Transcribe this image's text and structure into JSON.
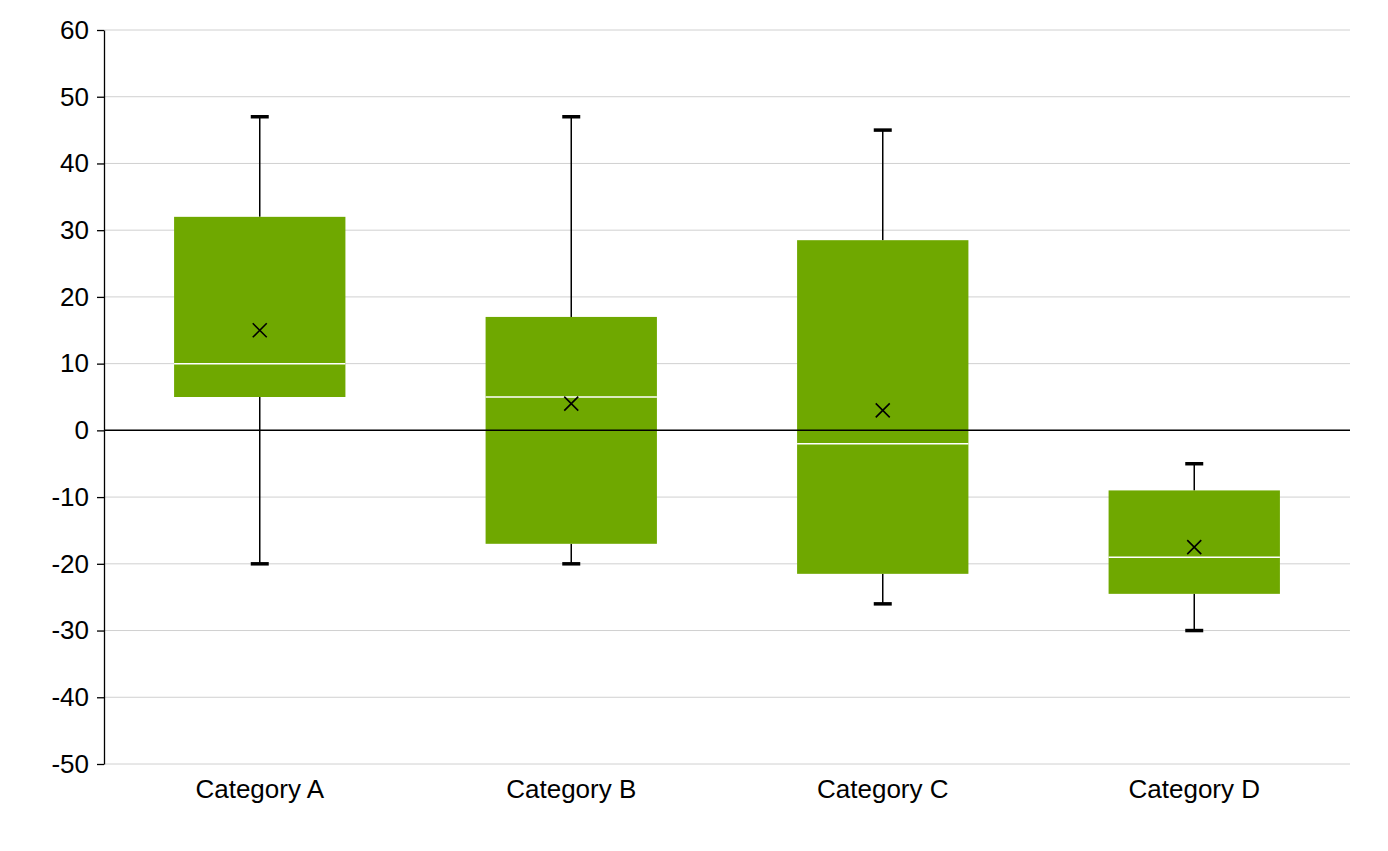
{
  "chart_data": {
    "type": "box",
    "categories": [
      "Category A",
      "Category B",
      "Category C",
      "Category D"
    ],
    "min": [
      -20,
      -20,
      -26,
      -30
    ],
    "q1": [
      5,
      -17,
      -21.5,
      -24.5
    ],
    "median": [
      10,
      5,
      -2,
      -19
    ],
    "q3": [
      32,
      17,
      28.5,
      -9
    ],
    "max": [
      47,
      47,
      45,
      -5
    ],
    "mean": [
      15,
      4,
      3,
      -17.5
    ],
    "color": "#6fa800",
    "marker": "x",
    "ylim": [
      -50,
      60
    ],
    "yticks": [
      -50,
      -40,
      -30,
      -20,
      -10,
      0,
      10,
      20,
      30,
      40,
      50,
      60
    ],
    "grid": true
  }
}
